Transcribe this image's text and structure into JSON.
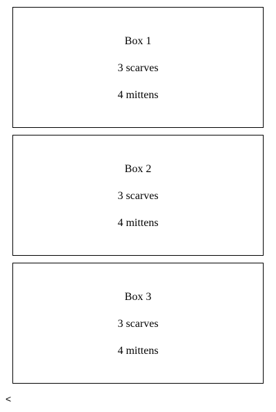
{
  "boxes": [
    {
      "title": "Box 1",
      "scarves": "3 scarves",
      "mittens": "4 mittens"
    },
    {
      "title": "Box 2",
      "scarves": "3 scarves",
      "mittens": "4 mittens"
    },
    {
      "title": "Box 3",
      "scarves": "3 scarves",
      "mittens": "4 mittens"
    }
  ],
  "nav": {
    "back_label": "<"
  }
}
